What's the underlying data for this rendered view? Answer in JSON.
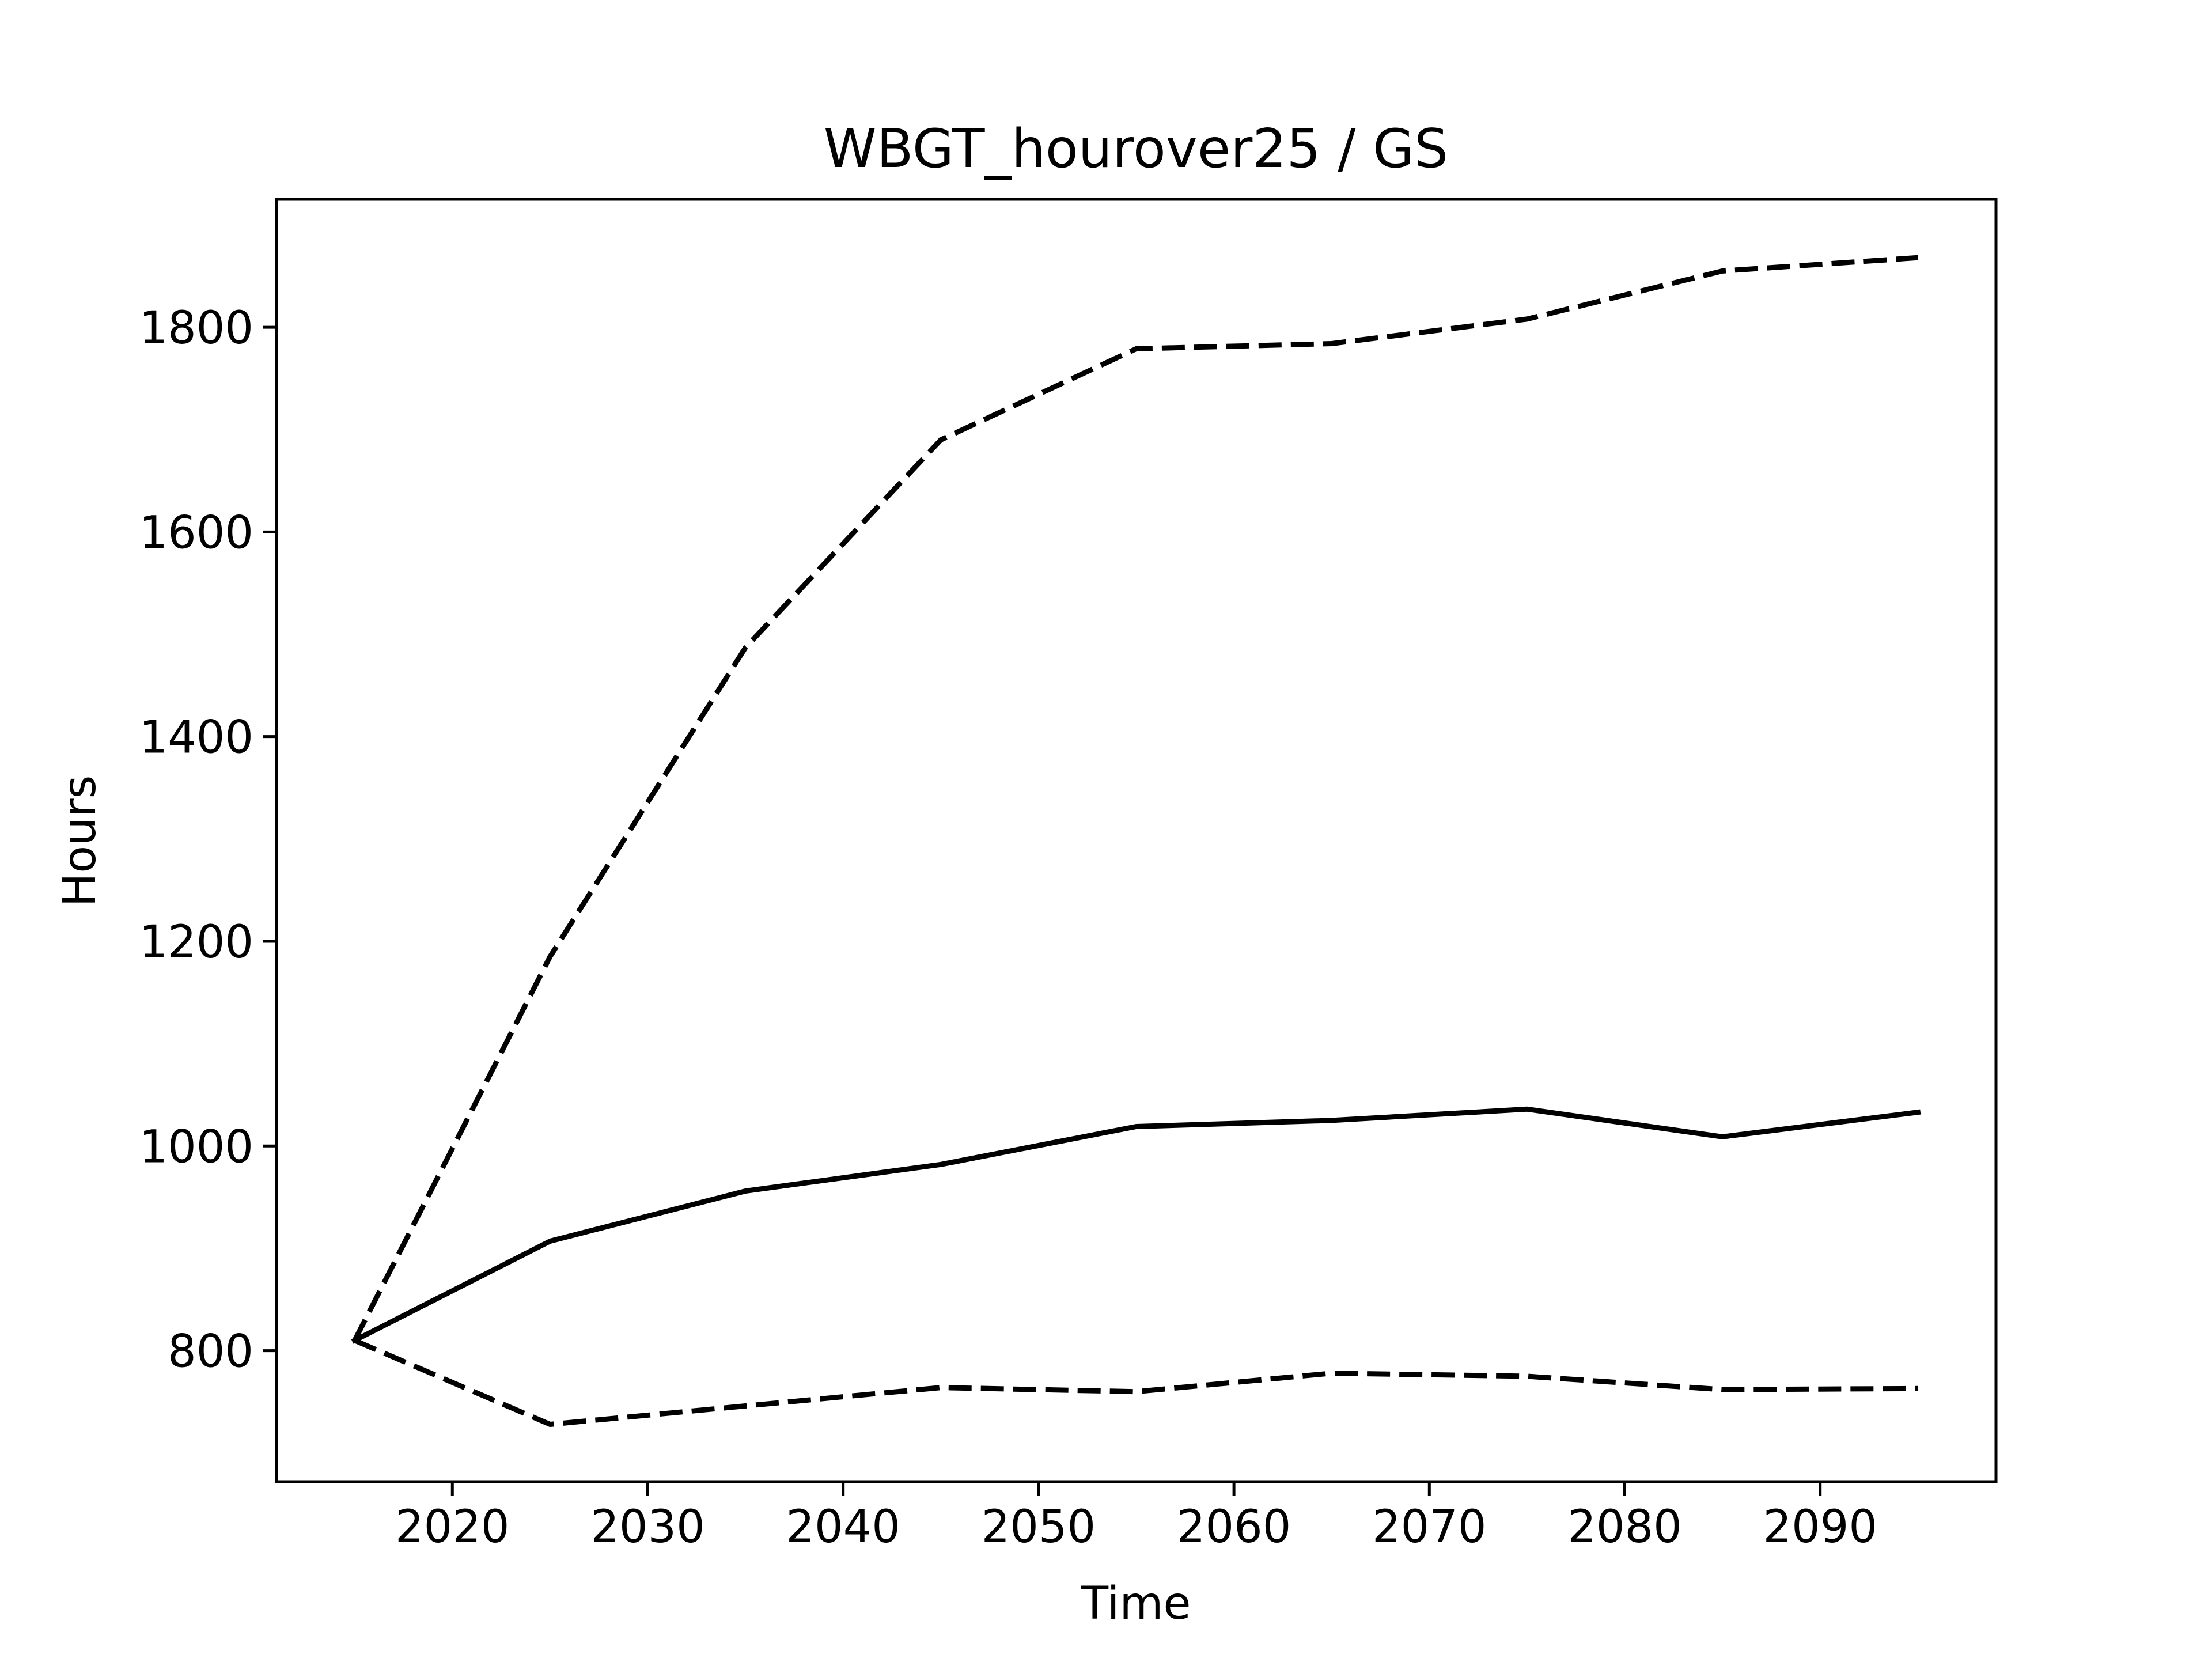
{
  "chart_data": {
    "type": "line",
    "title": "WBGT_hourover25 / GS",
    "xlabel": "Time",
    "ylabel": "Hours",
    "xlim": [
      2011,
      2099
    ],
    "ylim": [
      672,
      1925
    ],
    "x_ticks": [
      2020,
      2030,
      2040,
      2050,
      2060,
      2070,
      2080,
      2090
    ],
    "y_ticks": [
      800,
      1000,
      1200,
      1400,
      1600,
      1800
    ],
    "grid": false,
    "legend": "none",
    "x": [
      2015,
      2025,
      2035,
      2045,
      2055,
      2065,
      2075,
      2085,
      2095
    ],
    "series": [
      {
        "style": "dashed",
        "color": "#000000",
        "values": [
          810,
          1185,
          1487,
          1690,
          1779,
          1784,
          1808,
          1855,
          1868
        ]
      },
      {
        "style": "solid",
        "color": "#000000",
        "values": [
          810,
          907,
          956,
          982,
          1019,
          1025,
          1036,
          1009,
          1033
        ]
      },
      {
        "style": "dashed",
        "color": "#000000",
        "values": [
          810,
          728,
          746,
          764,
          760,
          778,
          775,
          762,
          763
        ]
      }
    ]
  }
}
